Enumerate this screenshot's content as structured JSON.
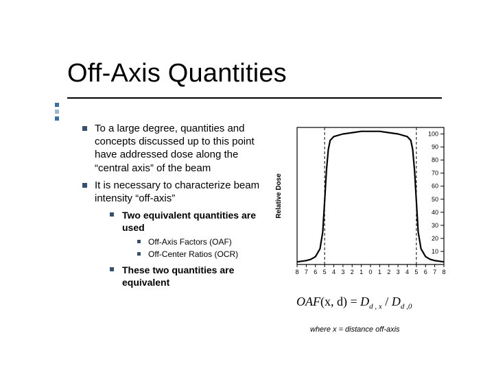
{
  "title": "Off-Axis Quantities",
  "bullets": {
    "b1": "To a large degree, quantities and concepts discussed up to this point have addressed dose along the “central axis” of the beam",
    "b2": "It is necessary to characterize beam intensity “off-axis”",
    "b2_1": "Two equivalent quantities are used",
    "b2_1_1": "Off-Axis Factors (OAF)",
    "b2_1_2": "Off-Center Ratios (OCR)",
    "b2_2": "These two quantities are equivalent"
  },
  "chart": {
    "type": "line",
    "title_pos": "none",
    "x_ticks": [
      "8",
      "7",
      "6",
      "5",
      "4",
      "3",
      "2",
      "1",
      "0",
      "1",
      "2",
      "3",
      "4",
      "5",
      "6",
      "7",
      "8"
    ],
    "y_label": "Relative Dose",
    "y_ticks": [
      "10",
      "20",
      "30",
      "40",
      "50",
      "60",
      "70",
      "80",
      "90",
      "100"
    ],
    "xlim": [
      -8,
      8
    ],
    "ylim": [
      0,
      105
    ],
    "curve": [
      [
        -8.0,
        2
      ],
      [
        -7.0,
        3
      ],
      [
        -6.5,
        4
      ],
      [
        -6.0,
        6
      ],
      [
        -5.5,
        12
      ],
      [
        -5.2,
        25
      ],
      [
        -5.0,
        48
      ],
      [
        -4.8,
        72
      ],
      [
        -4.6,
        88
      ],
      [
        -4.4,
        95
      ],
      [
        -4.0,
        98
      ],
      [
        -3.0,
        100
      ],
      [
        -2.0,
        101
      ],
      [
        -1.0,
        102
      ],
      [
        0.0,
        102
      ],
      [
        1.0,
        102
      ],
      [
        2.0,
        101
      ],
      [
        3.0,
        100
      ],
      [
        4.0,
        98
      ],
      [
        4.4,
        95
      ],
      [
        4.6,
        88
      ],
      [
        4.8,
        72
      ],
      [
        5.0,
        48
      ],
      [
        5.2,
        25
      ],
      [
        5.5,
        12
      ],
      [
        6.0,
        6
      ],
      [
        6.5,
        4
      ],
      [
        7.0,
        3
      ],
      [
        8.0,
        2
      ]
    ],
    "penumbra_lines_x": [
      -5.0,
      5.0
    ],
    "colors": {
      "axis": "#000000",
      "curve": "#000000",
      "dash": "#000000",
      "tick_text": "#000000",
      "background": "#ffffff"
    },
    "stroke": {
      "curve_width": 2.2,
      "axis_width": 1.2,
      "dash_pattern": "4 3"
    },
    "font": {
      "tick_size_pt": 9,
      "ylabel_size_pt": 10,
      "family": "Arial"
    }
  },
  "equation": {
    "lhs_func": "OAF",
    "lhs_args": "(x, d)",
    "eq": " = ",
    "rhs_num": "D",
    "rhs_num_sub": "d , x",
    "slash": " / ",
    "rhs_den": "D",
    "rhs_den_sub": "d ,0"
  },
  "caption": "where x = distance off-axis",
  "colors": {
    "text": "#000000",
    "bullet": "#34526f",
    "accent1": "#3b6fa8",
    "accent2": "#9db7cc",
    "bg": "#ffffff"
  }
}
